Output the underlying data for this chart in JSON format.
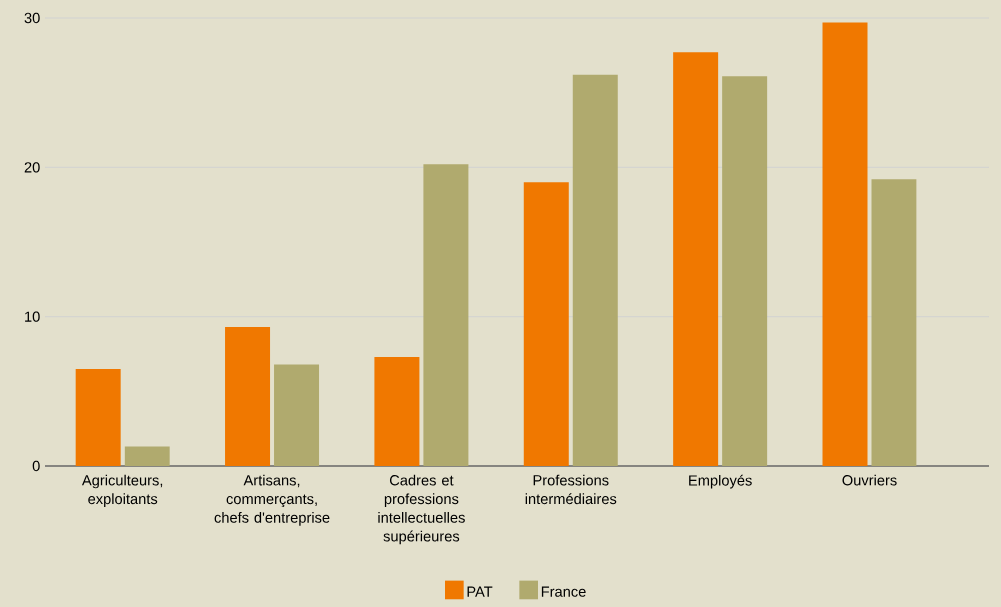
{
  "chart_data": {
    "type": "bar",
    "categories": [
      "Agriculteurs, exploitants",
      "Artisans, commerçants, chefs d'entreprise",
      "Cadres et professions intellectuelles supérieures",
      "Professions intermédiaires",
      "Employés",
      "Ouvriers"
    ],
    "series": [
      {
        "name": "PAT",
        "color": "#f07800",
        "values": [
          6.5,
          9.3,
          7.3,
          19.0,
          27.7,
          29.7
        ]
      },
      {
        "name": "France",
        "color": "#b0aa6e",
        "values": [
          1.3,
          6.8,
          20.2,
          26.2,
          26.1,
          19.2
        ]
      }
    ],
    "ylim": [
      0,
      30
    ],
    "yticks": [
      0,
      10,
      20,
      30
    ],
    "grid": "y",
    "legend": "bottom"
  }
}
